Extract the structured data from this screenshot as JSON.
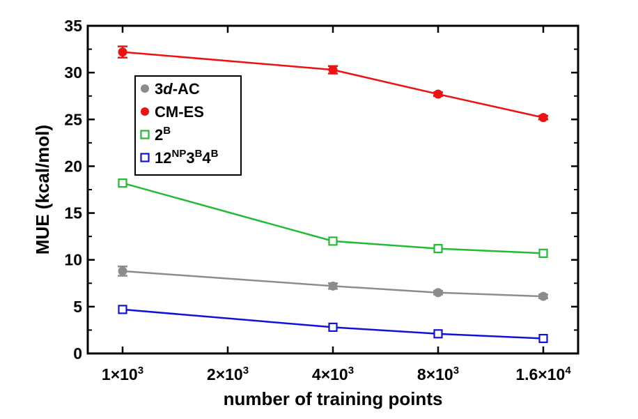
{
  "chart_data": {
    "type": "line",
    "xscale": "log",
    "x": [
      1000,
      4000,
      8000,
      16000
    ],
    "xticks": [
      {
        "value": 1000,
        "mant": "1",
        "exp": "3"
      },
      {
        "value": 2000,
        "mant": "2",
        "exp": "3"
      },
      {
        "value": 4000,
        "mant": "4",
        "exp": "3"
      },
      {
        "value": 8000,
        "mant": "8",
        "exp": "3"
      },
      {
        "value": 16000,
        "mant": "1.6",
        "exp": "4"
      }
    ],
    "xlabel": "number of training points",
    "ylabel": "MUE (kcal/mol)",
    "ylim": [
      0,
      35
    ],
    "yticks": [
      0,
      5,
      10,
      15,
      20,
      25,
      30,
      35
    ],
    "legend_position": "top-left",
    "series": [
      {
        "name": "3d-AC",
        "parts": [
          {
            "t": "3"
          },
          {
            "t": "d",
            "italic": true
          },
          {
            "t": "-AC"
          }
        ],
        "marker": "filled-circle",
        "color": "#8c8c8c",
        "values": [
          8.8,
          7.2,
          6.5,
          6.1
        ],
        "errors": [
          0.5,
          0.3,
          0.2,
          0.2
        ]
      },
      {
        "name": "CM-ES",
        "parts": [
          {
            "t": "CM-ES"
          }
        ],
        "marker": "filled-circle",
        "color": "#ee1111",
        "values": [
          32.2,
          30.3,
          27.7,
          25.2
        ],
        "errors": [
          0.6,
          0.4,
          0.2,
          0.2
        ]
      },
      {
        "name": "2B",
        "parts": [
          {
            "t": "2"
          },
          {
            "t": "B",
            "sup": true
          }
        ],
        "marker": "open-square",
        "color": "#22bb33",
        "values": [
          18.2,
          12.0,
          11.2,
          10.7
        ],
        "errors": [
          0,
          0,
          0,
          0
        ]
      },
      {
        "name": "12NP3B4B",
        "parts": [
          {
            "t": "12"
          },
          {
            "t": "NP",
            "sup": true
          },
          {
            "t": "3"
          },
          {
            "t": "B",
            "sup": true
          },
          {
            "t": "4"
          },
          {
            "t": "B",
            "sup": true
          }
        ],
        "marker": "open-square",
        "color": "#1111dd",
        "values": [
          4.7,
          2.8,
          2.1,
          1.6
        ],
        "errors": [
          0,
          0,
          0,
          0
        ]
      }
    ]
  }
}
